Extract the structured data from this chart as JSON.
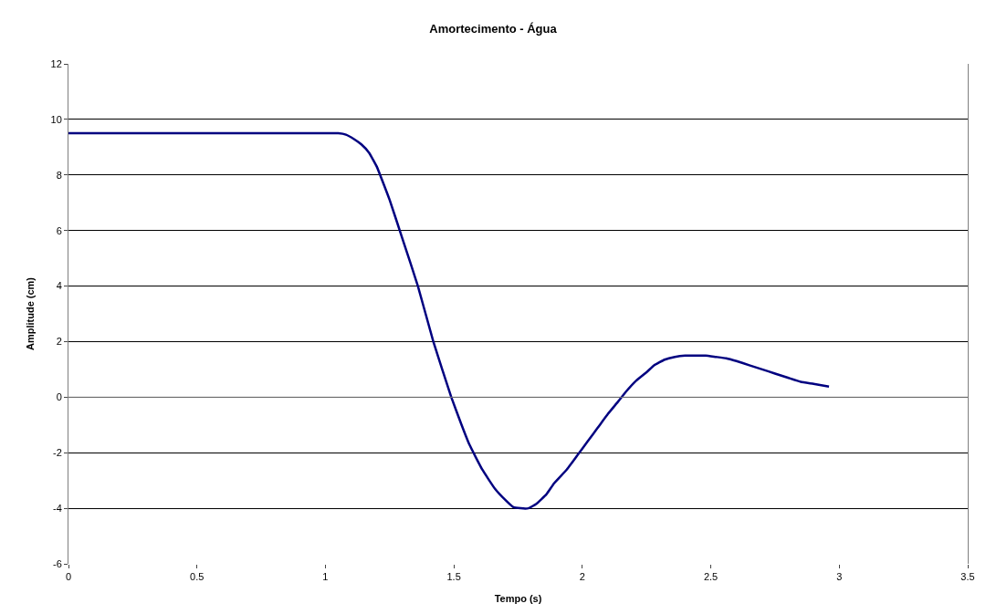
{
  "chart_data": {
    "type": "line",
    "title": "Amortecimento - Água",
    "xlabel": "Tempo (s)",
    "ylabel": "Amplitude (cm)",
    "x": [
      0,
      0.1,
      0.2,
      0.3,
      0.4,
      0.5,
      0.6,
      0.7,
      0.8,
      0.9,
      1.0,
      1.05,
      1.08,
      1.11,
      1.14,
      1.17,
      1.2,
      1.25,
      1.3,
      1.36,
      1.42,
      1.49,
      1.53,
      1.56,
      1.61,
      1.66,
      1.7,
      1.73,
      1.76,
      1.79,
      1.82,
      1.86,
      1.89,
      1.94,
      1.98,
      2.02,
      2.06,
      2.1,
      2.14,
      2.17,
      2.21,
      2.25,
      2.28,
      2.32,
      2.36,
      2.4,
      2.44,
      2.48,
      2.52,
      2.56,
      2.6,
      2.65,
      2.7,
      2.75,
      2.8,
      2.85,
      2.9,
      2.96
    ],
    "series": [
      {
        "color": "#000080",
        "values": [
          9.5,
          9.5,
          9.5,
          9.5,
          9.5,
          9.5,
          9.5,
          9.5,
          9.5,
          9.5,
          9.5,
          9.5,
          9.45,
          9.3,
          9.1,
          8.8,
          8.3,
          7.1,
          5.7,
          4.0,
          2.0,
          0,
          -1.0,
          -1.7,
          -2.6,
          -3.3,
          -3.7,
          -3.95,
          -4.0,
          -4.0,
          -3.85,
          -3.5,
          -3.1,
          -2.6,
          -2.1,
          -1.6,
          -1.1,
          -0.6,
          -0.15,
          0.2,
          0.6,
          0.9,
          1.15,
          1.35,
          1.45,
          1.5,
          1.5,
          1.5,
          1.45,
          1.4,
          1.3,
          1.15,
          1.0,
          0.85,
          0.7,
          0.55,
          0.48,
          0.38
        ]
      }
    ],
    "xlim": [
      0,
      3.5
    ],
    "xticks": [
      0,
      0.5,
      1,
      1.5,
      2,
      2.5,
      3,
      3.5
    ],
    "ylim": [
      -6,
      12
    ],
    "yticks": [
      -6,
      -4,
      -2,
      0,
      2,
      4,
      6,
      8,
      10,
      12
    ],
    "grid": "y",
    "legend": false,
    "marker": "none",
    "line_style": "solid"
  }
}
